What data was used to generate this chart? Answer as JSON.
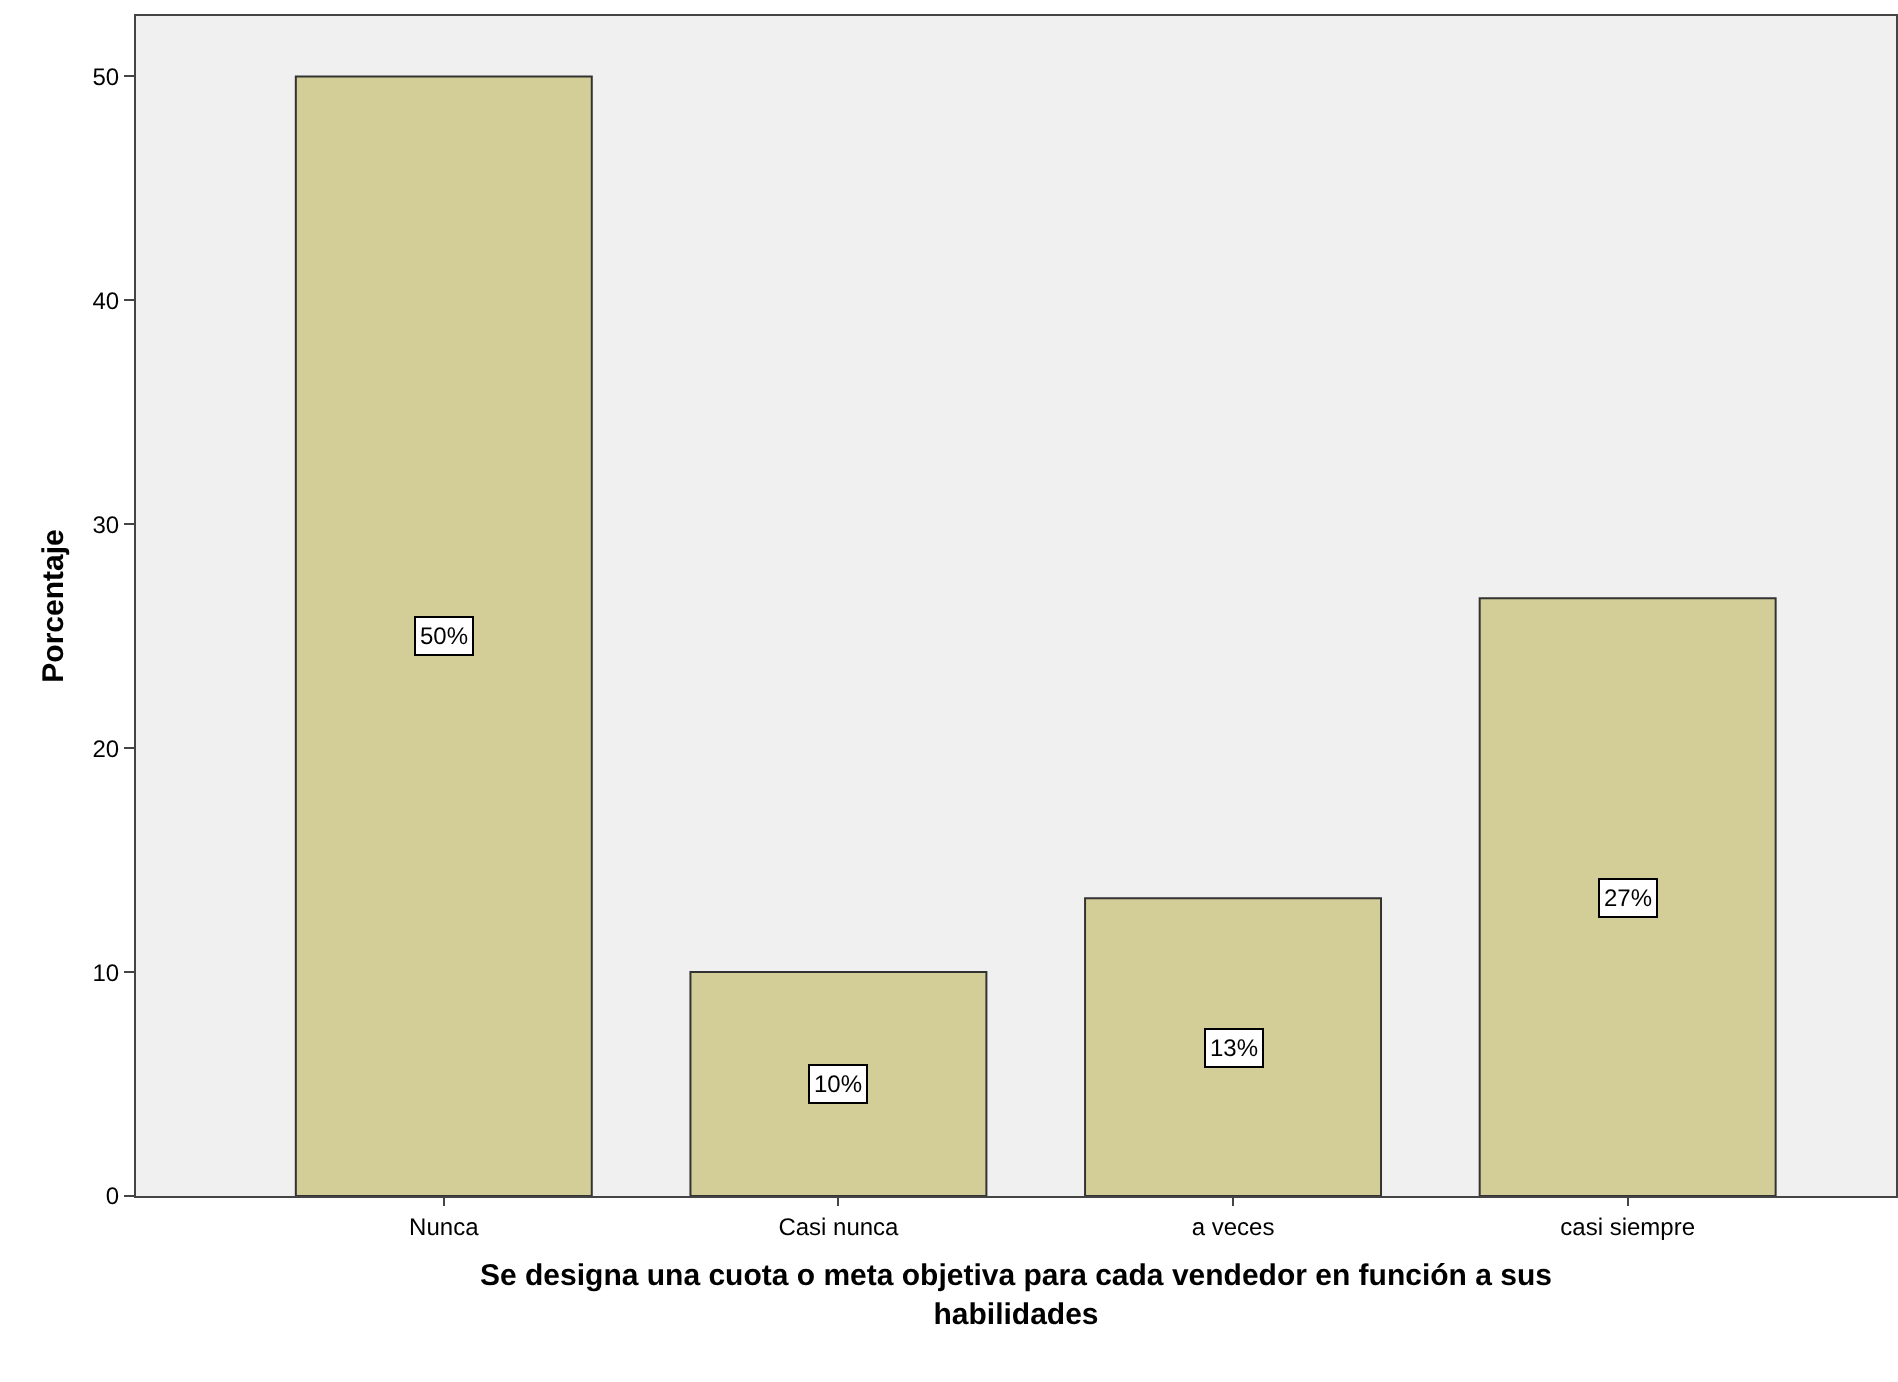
{
  "chart_data": {
    "type": "bar",
    "xlabel": "Se designa una cuota o meta objetiva para cada vendedor en función a sus habilidades",
    "ylabel": "Porcentaje",
    "categories": [
      "Nunca",
      "Casi nunca",
      "a veces",
      "casi siempre"
    ],
    "values": [
      50,
      10,
      13.3,
      26.7
    ],
    "value_labels": [
      "50%",
      "10%",
      "13%",
      "27%"
    ],
    "color": "#d3ce97",
    "ylim": [
      0,
      52.7
    ],
    "yticks": [
      0,
      10,
      20,
      30,
      40,
      50
    ],
    "grid": false
  }
}
